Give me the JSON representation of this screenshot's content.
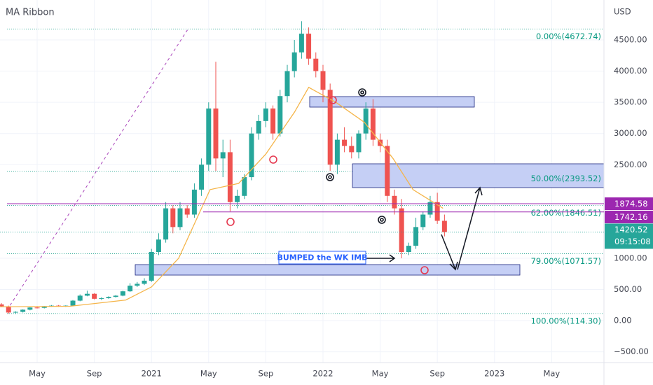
{
  "chart_data": {
    "type": "candlestick",
    "title": "MA Ribbon",
    "currency": "USD",
    "x": [
      1.5,
      2,
      2.5,
      3,
      3.5,
      4,
      4.5,
      5,
      5.5,
      6,
      6.5,
      7,
      7.5,
      8,
      8.5,
      9,
      9.5,
      10,
      10.5,
      11,
      11.5,
      12,
      12.5,
      13,
      13.5,
      14,
      14.5,
      15,
      15.5,
      16,
      16.5,
      17,
      17.5,
      18,
      18.5,
      19,
      19.5,
      20,
      20.5,
      21,
      21.5,
      22,
      22.5,
      23,
      23.5,
      24,
      24.5,
      25,
      25.5,
      26,
      26.5,
      27,
      27.5,
      28,
      28.5,
      29,
      29.5,
      30,
      30.5,
      31,
      31.5,
      32,
      32.5
    ],
    "open": [
      260,
      230,
      130,
      140,
      175,
      210,
      205,
      230,
      240,
      230,
      240,
      320,
      400,
      430,
      350,
      360,
      380,
      400,
      470,
      560,
      590,
      640,
      1100,
      1300,
      1800,
      1500,
      1800,
      1700,
      2100,
      2500,
      3400,
      2600,
      2700,
      1900,
      2000,
      2300,
      3000,
      3200,
      3400,
      3000,
      3600,
      4000,
      4300,
      4600,
      4200,
      4000,
      3700,
      2500,
      2900,
      2800,
      2700,
      3000,
      3400,
      2900,
      2800,
      2000,
      1800,
      1100,
      1200,
      1500,
      1700,
      1900,
      1600
    ],
    "high": [
      280,
      240,
      150,
      180,
      215,
      220,
      235,
      250,
      250,
      245,
      330,
      420,
      480,
      440,
      375,
      390,
      410,
      480,
      600,
      620,
      680,
      1150,
      1400,
      1900,
      1850,
      1900,
      1850,
      2200,
      2600,
      3500,
      4150,
      2900,
      2900,
      2100,
      2350,
      3100,
      3300,
      3500,
      3450,
      3700,
      4100,
      4500,
      4800,
      4700,
      4300,
      4100,
      3800,
      3000,
      3100,
      2950,
      3050,
      3500,
      3550,
      3000,
      2900,
      2100,
      1950,
      1250,
      1650,
      1750,
      2000,
      2050,
      1700
    ],
    "low": [
      220,
      110,
      105,
      130,
      165,
      195,
      195,
      220,
      220,
      220,
      230,
      310,
      390,
      340,
      330,
      350,
      370,
      390,
      460,
      540,
      570,
      620,
      1050,
      1250,
      1400,
      1450,
      1650,
      1650,
      2000,
      2400,
      2400,
      2300,
      1750,
      1800,
      1950,
      2250,
      2900,
      3100,
      2900,
      2950,
      3500,
      3900,
      4200,
      4100,
      3900,
      3500,
      2400,
      2350,
      2700,
      2600,
      2600,
      2900,
      2800,
      2700,
      1900,
      1700,
      1000,
      1050,
      1150,
      1450,
      1650,
      1550,
      1350
    ],
    "close": [
      230,
      130,
      140,
      175,
      210,
      205,
      230,
      240,
      230,
      240,
      320,
      400,
      430,
      350,
      360,
      380,
      400,
      470,
      560,
      590,
      640,
      1100,
      1300,
      1800,
      1500,
      1800,
      1700,
      2100,
      2500,
      3400,
      2600,
      2700,
      1900,
      2000,
      2300,
      3000,
      3200,
      3400,
      3000,
      3600,
      4000,
      4300,
      4600,
      4200,
      4000,
      3700,
      2500,
      2900,
      2800,
      2700,
      3000,
      3400,
      2900,
      2800,
      2000,
      1800,
      1100,
      1200,
      1500,
      1700,
      1900,
      1600,
      1420
    ],
    "up_color": "#26a69a",
    "down_color": "#ef5350",
    "ma": {
      "color": "#f5b54a",
      "x": [
        1.4,
        6.3,
        10.2,
        12,
        13.9,
        16.1,
        18.1,
        20,
        22,
        23,
        24.9,
        26.9,
        28.9,
        30.3,
        32.4
      ],
      "values": [
        220,
        230,
        330,
        540,
        1000,
        2100,
        2200,
        2670,
        3340,
        3740,
        3500,
        3180,
        2600,
        2100,
        1800
      ]
    },
    "fib_levels": [
      {
        "label": "0.00%(4672.74)",
        "value": 4672.74
      },
      {
        "label": "50.00%(2393.52)",
        "value": 2393.52
      },
      {
        "label": "62.00%(1846.51)",
        "value": 1846.51
      },
      {
        "label": "79.00%(1071.57)",
        "value": 1071.57
      },
      {
        "label": "100.00%(114.30)",
        "value": 114.3
      }
    ],
    "fib_color": "#089981",
    "price_lines": [
      {
        "value": 1874.58,
        "color": "#9c27b0"
      },
      {
        "value": 1742.16,
        "color": "#9c27b0"
      }
    ],
    "last_price": {
      "value": 1420.52,
      "countdown": "09:15:08",
      "color": "#26a69a"
    },
    "annotation": "BUMPED the WK IMB",
    "xlim": [
      1.4,
      43.66
    ],
    "ylim": [
      -673,
      5140
    ],
    "xticks": [
      {
        "value": 4,
        "label": "May"
      },
      {
        "value": 8,
        "label": "Sep"
      },
      {
        "value": 12,
        "label": "2021"
      },
      {
        "value": 16,
        "label": "May"
      },
      {
        "value": 20,
        "label": "Sep"
      },
      {
        "value": 24,
        "label": "2022"
      },
      {
        "value": 28,
        "label": "May"
      },
      {
        "value": 32,
        "label": "Sep"
      },
      {
        "value": 36,
        "label": "2023"
      },
      {
        "value": 40,
        "label": "May"
      }
    ],
    "yticks": [
      {
        "value": 4500,
        "label": "4500.00"
      },
      {
        "value": 4000,
        "label": "4000.00"
      },
      {
        "value": 3500,
        "label": "3500.00"
      },
      {
        "value": 3000,
        "label": "3000.00"
      },
      {
        "value": 2500,
        "label": "2500.00"
      },
      {
        "value": 1000,
        "label": "1000.00"
      },
      {
        "value": 500,
        "label": "500.00"
      },
      {
        "value": 0,
        "label": "0.00"
      },
      {
        "value": -500,
        "label": "−500.00"
      }
    ],
    "grid": true
  }
}
